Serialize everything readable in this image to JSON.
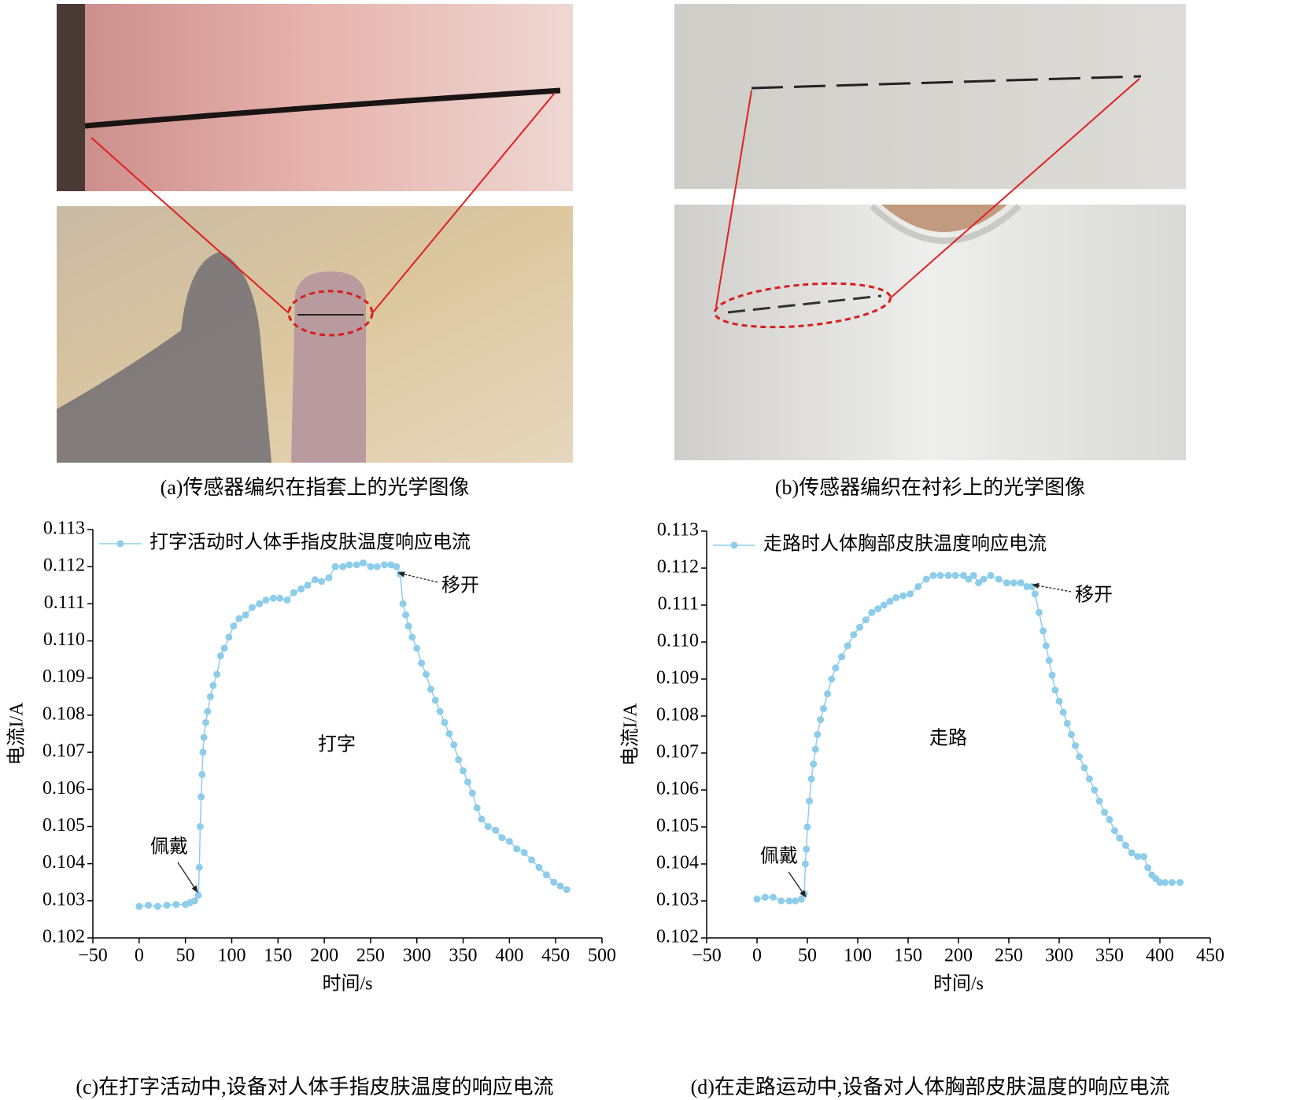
{
  "photos": [
    {
      "caption": "(a)传感器编织在指套上的光学图像"
    },
    {
      "caption": "(b)传感器编织在衬衫上的光学图像"
    }
  ],
  "chart_data": [
    {
      "type": "line",
      "caption": "(c)在打字活动中,设备对人体手指皮肤温度的响应电流",
      "x_label": "时间/s",
      "y_label": "电流I/A",
      "xlim": [
        -50,
        500
      ],
      "xticks": [
        {
          "value": -50,
          "label": "−50"
        },
        0,
        50,
        100,
        150,
        200,
        250,
        300,
        350,
        400,
        450,
        500
      ],
      "ylim": [
        0.102,
        0.113
      ],
      "yticks": [
        {
          "value": 0.102,
          "label": "0.102"
        },
        {
          "value": 0.103,
          "label": "0.103"
        },
        {
          "value": 0.104,
          "label": "0.104"
        },
        {
          "value": 0.105,
          "label": "0.105"
        },
        {
          "value": 0.106,
          "label": "0.106"
        },
        {
          "value": 0.107,
          "label": "0.107"
        },
        {
          "value": 0.108,
          "label": "0.108"
        },
        {
          "value": 0.109,
          "label": "0.109"
        },
        {
          "value": 0.11,
          "label": "0.110"
        },
        {
          "value": 0.111,
          "label": "0.111"
        },
        {
          "value": 0.112,
          "label": "0.112"
        },
        {
          "value": 0.113,
          "label": "0.113"
        }
      ],
      "annotations": [
        {
          "text": "佩戴"
        },
        {
          "text": "移开"
        },
        {
          "text": "打字"
        }
      ],
      "x": [
        0,
        10,
        20,
        30,
        40,
        50,
        55,
        60,
        64,
        65,
        66,
        67,
        68,
        69,
        70,
        72,
        74,
        77,
        80,
        84,
        88,
        92,
        97,
        102,
        108,
        115,
        122,
        130,
        137,
        145,
        152,
        160,
        167,
        175,
        182,
        190,
        197,
        205,
        212,
        220,
        227,
        235,
        242,
        250,
        257,
        265,
        272,
        278,
        282,
        285,
        288,
        291,
        295,
        300,
        305,
        310,
        315,
        320,
        325,
        330,
        335,
        340,
        345,
        350,
        355,
        360,
        365,
        370,
        377,
        385,
        392,
        400,
        408,
        416,
        424,
        432,
        440,
        448,
        455,
        462
      ],
      "series": [
        {
          "name": "打字活动时人体手指皮肤温度响应电流",
          "color": "#8ecdea",
          "values": [
            0.10285,
            0.10288,
            0.10285,
            0.10288,
            0.1029,
            0.1029,
            0.10295,
            0.103,
            0.10315,
            0.1039,
            0.105,
            0.1058,
            0.1064,
            0.107,
            0.1074,
            0.1078,
            0.1081,
            0.1085,
            0.1088,
            0.1091,
            0.1096,
            0.1098,
            0.1101,
            0.1104,
            0.1106,
            0.1107,
            0.1109,
            0.111,
            0.1111,
            0.11115,
            0.11115,
            0.1111,
            0.1113,
            0.1114,
            0.1115,
            0.11165,
            0.1116,
            0.1117,
            0.112,
            0.112,
            0.11205,
            0.11205,
            0.1121,
            0.112,
            0.112,
            0.11205,
            0.11205,
            0.112,
            0.1118,
            0.111,
            0.1107,
            0.1104,
            0.1101,
            0.1098,
            0.1094,
            0.1091,
            0.1087,
            0.1084,
            0.1081,
            0.1078,
            0.1075,
            0.1072,
            0.1068,
            0.1065,
            0.1062,
            0.1059,
            0.1055,
            0.1052,
            0.105,
            0.1049,
            0.1047,
            0.1046,
            0.1044,
            0.1043,
            0.1041,
            0.1039,
            0.1037,
            0.1035,
            0.1034,
            0.1033
          ]
        }
      ]
    },
    {
      "type": "line",
      "caption": "(d)在走路运动中,设备对人体胸部皮肤温度的响应电流",
      "x_label": "时间/s",
      "y_label": "电流I/A",
      "xlim": [
        -50,
        450
      ],
      "xticks": [
        {
          "value": -50,
          "label": "−50"
        },
        0,
        50,
        100,
        150,
        200,
        250,
        300,
        350,
        400,
        450
      ],
      "ylim": [
        0.102,
        0.113
      ],
      "yticks": [
        {
          "value": 0.102,
          "label": "0.102"
        },
        {
          "value": 0.103,
          "label": "0.103"
        },
        {
          "value": 0.104,
          "label": "0.104"
        },
        {
          "value": 0.105,
          "label": "0.105"
        },
        {
          "value": 0.106,
          "label": "0.106"
        },
        {
          "value": 0.107,
          "label": "0.107"
        },
        {
          "value": 0.108,
          "label": "0.108"
        },
        {
          "value": 0.109,
          "label": "0.109"
        },
        {
          "value": 0.11,
          "label": "0.110"
        },
        {
          "value": 0.111,
          "label": "0.111"
        },
        {
          "value": 0.112,
          "label": "0.112"
        },
        {
          "value": 0.113,
          "label": "0.113"
        }
      ],
      "annotations": [
        {
          "text": "佩戴"
        },
        {
          "text": "移开"
        },
        {
          "text": "走路"
        }
      ],
      "x": [
        0,
        8,
        16,
        24,
        32,
        38,
        44,
        47,
        48,
        49,
        50,
        52,
        54,
        56,
        58,
        60,
        63,
        66,
        70,
        74,
        78,
        84,
        90,
        96,
        102,
        108,
        114,
        120,
        126,
        132,
        138,
        145,
        152,
        160,
        168,
        175,
        182,
        190,
        197,
        205,
        210,
        215,
        220,
        225,
        232,
        240,
        248,
        255,
        262,
        268,
        273,
        276,
        280,
        284,
        287,
        290,
        293,
        296,
        300,
        304,
        308,
        312,
        316,
        320,
        325,
        330,
        335,
        340,
        345,
        350,
        355,
        360,
        366,
        372,
        378,
        384,
        388,
        392,
        396,
        400,
        405,
        412,
        420
      ],
      "series": [
        {
          "name": "走路时人体胸部皮肤温度响应电流",
          "color": "#8ecdea",
          "values": [
            0.10305,
            0.1031,
            0.1031,
            0.103,
            0.103,
            0.103,
            0.10305,
            0.1032,
            0.104,
            0.1044,
            0.105,
            0.1057,
            0.1063,
            0.1067,
            0.1071,
            0.1075,
            0.1079,
            0.1082,
            0.1086,
            0.109,
            0.1093,
            0.1096,
            0.1099,
            0.1102,
            0.1104,
            0.1106,
            0.1108,
            0.1109,
            0.111,
            0.1111,
            0.1112,
            0.11125,
            0.1113,
            0.1115,
            0.1117,
            0.1118,
            0.1118,
            0.1118,
            0.1118,
            0.1118,
            0.1117,
            0.1118,
            0.1116,
            0.1117,
            0.1118,
            0.1117,
            0.1116,
            0.1116,
            0.1116,
            0.1115,
            0.1115,
            0.1113,
            0.1108,
            0.1103,
            0.1099,
            0.1095,
            0.1091,
            0.1087,
            0.1084,
            0.1081,
            0.1078,
            0.1075,
            0.1072,
            0.1069,
            0.1066,
            0.1063,
            0.106,
            0.1057,
            0.1054,
            0.1052,
            0.1049,
            0.1047,
            0.1045,
            0.1043,
            0.1042,
            0.1042,
            0.1039,
            0.1037,
            0.1036,
            0.1035,
            0.1035,
            0.1035,
            0.1035
          ]
        }
      ]
    }
  ]
}
